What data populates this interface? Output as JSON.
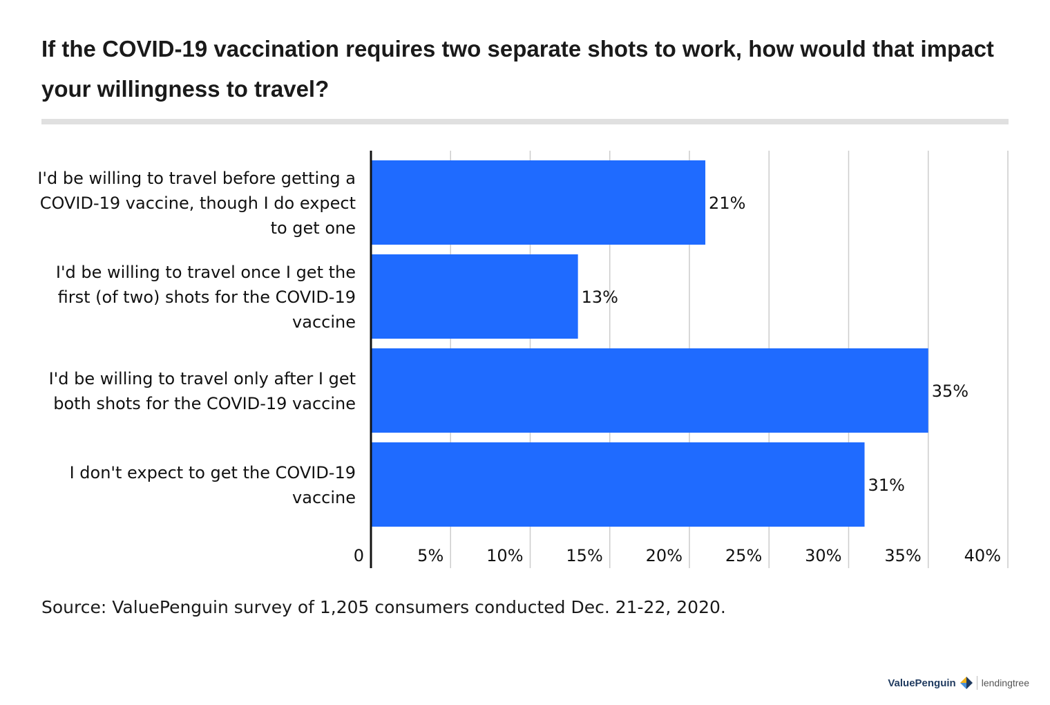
{
  "title": "If the COVID-19 vaccination requires two separate shots to work, how would that impact your willingness to travel?",
  "source": "Source: ValuePenguin survey of 1,205 consumers conducted Dec. 21-22, 2020.",
  "brand": {
    "primary": "ValuePenguin",
    "secondary": "lendingtree"
  },
  "colors": {
    "bar": "#1f6bff",
    "grid": "#cccccc",
    "axis": "#111111"
  },
  "chart_data": {
    "type": "bar",
    "orientation": "horizontal",
    "categories": [
      [
        "I'd be willing to travel before getting a",
        "COVID-19 vaccine, though I do expect",
        "to get one"
      ],
      [
        "I'd be willing to travel once I get the",
        "first (of two) shots for the COVID-19",
        "vaccine"
      ],
      [
        "I'd be willing to travel only after I get",
        "both shots for the COVID-19 vaccine"
      ],
      [
        "I don't expect to get the COVID-19",
        "vaccine"
      ]
    ],
    "values": [
      21,
      13,
      35,
      31
    ],
    "value_labels": [
      "21%",
      "13%",
      "35%",
      "31%"
    ],
    "xlim": [
      0,
      40
    ],
    "xticks": [
      0,
      5,
      10,
      15,
      20,
      25,
      30,
      35,
      40
    ],
    "xtick_labels": [
      "0",
      "5%",
      "10%",
      "15%",
      "20%",
      "25%",
      "30%",
      "35%",
      "40%"
    ],
    "grid": true,
    "legend": false
  }
}
